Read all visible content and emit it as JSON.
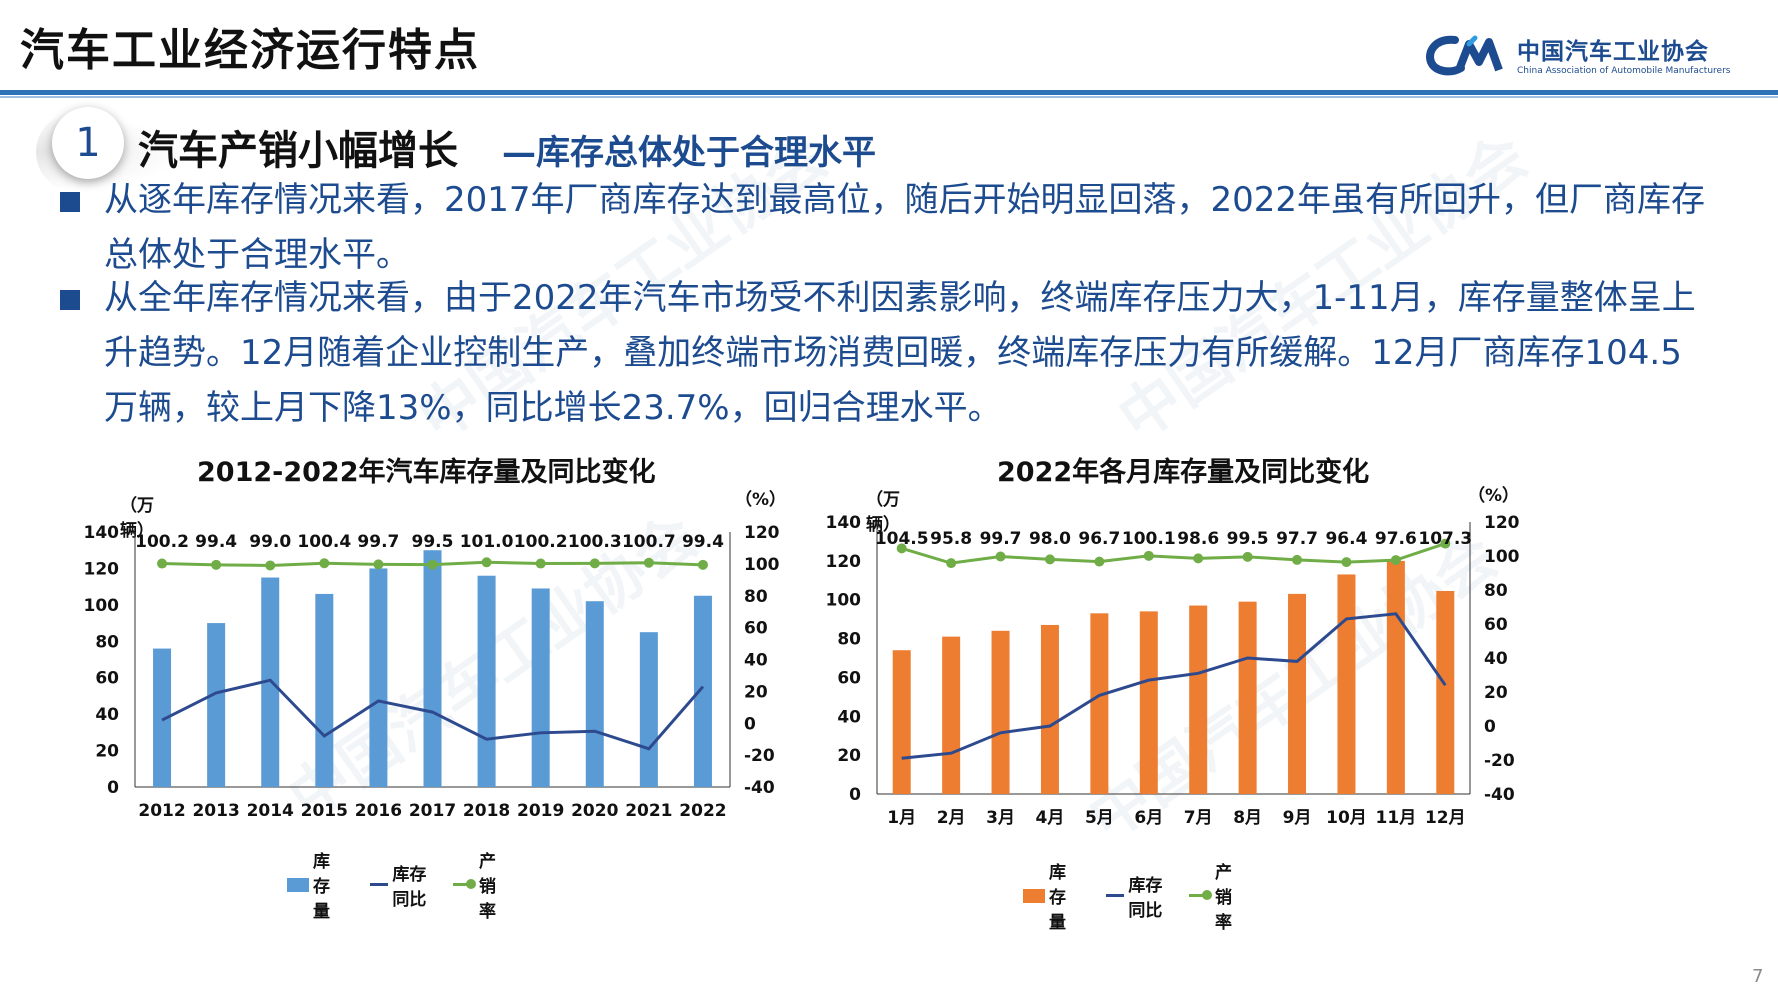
{
  "header": {
    "title": "汽车工业经济运行特点",
    "logo_cn": "中国汽车工业协会",
    "logo_en": "China Association of Automobile Manufacturers"
  },
  "section": {
    "number": "1",
    "title": "汽车产销小幅增长",
    "subtitle": "—库存总体处于合理水平"
  },
  "bullets": [
    "从逐年库存情况来看，2017年厂商库存达到最高位，随后开始明显回落，2022年虽有所回升，但厂商库存总体处于合理水平。",
    "从全年库存情况来看，由于2022年汽车市场受不利因素影响，终端库存压力大，1-11月，库存量整体呈上升趋势。12月随着企业控制生产，叠加终端市场消费回暖，终端库存压力有所缓解。12月厂商库存104.5万辆，较上月下降13%，同比增长23.7%，回归合理水平。"
  ],
  "page_number": "7",
  "colors": {
    "brand_blue": "#1d4b8f",
    "bar_blue": "#5b9bd5",
    "bar_orange": "#ed7d31",
    "line_navy": "#2e4a8f",
    "line_green": "#70ad47"
  },
  "chart_data": [
    {
      "type": "bar",
      "title": "2012-2022年汽车库存量及同比变化",
      "y_unit_left": "（万辆）",
      "y_unit_right": "（%）",
      "categories": [
        "2012",
        "2013",
        "2014",
        "2015",
        "2016",
        "2017",
        "2018",
        "2019",
        "2020",
        "2021",
        "2022"
      ],
      "ylim_left": [
        0,
        140
      ],
      "yticks_left": [
        "0",
        "20",
        "40",
        "60",
        "80",
        "100",
        "120",
        "140"
      ],
      "ylim_right": [
        -40,
        120
      ],
      "yticks_right": [
        "-40",
        "-20",
        "0",
        "20",
        "40",
        "60",
        "80",
        "100",
        "120"
      ],
      "series": [
        {
          "name": "库存量",
          "kind": "bar",
          "axis": "left",
          "color": "#5b9bd5",
          "values": [
            76,
            90,
            115,
            106,
            120,
            130,
            116,
            109,
            102,
            85,
            105
          ]
        },
        {
          "name": "库存同比",
          "kind": "line",
          "axis": "right",
          "color": "#2e4a8f",
          "values": [
            2,
            19,
            27,
            -8,
            14,
            7,
            -10,
            -6,
            -5,
            -16,
            23
          ]
        },
        {
          "name": "产销率",
          "kind": "line",
          "axis": "right",
          "color": "#70ad47",
          "markers": true,
          "values": [
            100.2,
            99.4,
            99.0,
            100.4,
            99.7,
            99.5,
            101.0,
            100.2,
            100.3,
            100.7,
            99.4
          ],
          "labels": [
            "100.2",
            "99.4",
            "99.0",
            "100.4",
            "99.7",
            "99.5",
            "101.0",
            "100.2",
            "100.3",
            "100.7",
            "99.4"
          ]
        }
      ]
    },
    {
      "type": "bar",
      "title": "2022年各月库存量及同比变化",
      "y_unit_left": "（万辆）",
      "y_unit_right": "（%）",
      "categories": [
        "1月",
        "2月",
        "3月",
        "4月",
        "5月",
        "6月",
        "7月",
        "8月",
        "9月",
        "10月",
        "11月",
        "12月"
      ],
      "ylim_left": [
        0,
        140
      ],
      "yticks_left": [
        "0",
        "20",
        "40",
        "60",
        "80",
        "100",
        "120",
        "140"
      ],
      "ylim_right": [
        -40,
        120
      ],
      "yticks_right": [
        "-40",
        "-20",
        "0",
        "20",
        "40",
        "60",
        "80",
        "100",
        "120"
      ],
      "series": [
        {
          "name": "库存量",
          "kind": "bar",
          "axis": "left",
          "color": "#ed7d31",
          "values": [
            74,
            81,
            84,
            87,
            93,
            94,
            97,
            99,
            103,
            113,
            120,
            104.5
          ]
        },
        {
          "name": "库存同比",
          "kind": "line",
          "axis": "right",
          "color": "#2e4a8f",
          "values": [
            -19,
            -16,
            -4,
            0,
            18,
            27,
            31,
            40,
            38,
            63,
            66,
            24
          ]
        },
        {
          "name": "产销率",
          "kind": "line",
          "axis": "right",
          "color": "#70ad47",
          "markers": true,
          "values": [
            104.5,
            95.8,
            99.7,
            98.0,
            96.7,
            100.1,
            98.6,
            99.5,
            97.7,
            96.4,
            97.6,
            107.3
          ],
          "labels": [
            "104.5",
            "95.8",
            "99.7",
            "98.0",
            "96.7",
            "100.1",
            "98.6",
            "99.5",
            "97.7",
            "96.4",
            "97.6",
            "107.3"
          ]
        }
      ]
    }
  ]
}
